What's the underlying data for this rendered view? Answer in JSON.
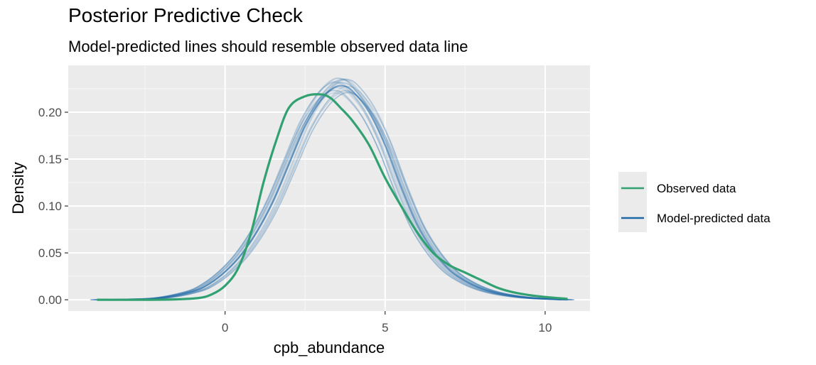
{
  "chart_data": {
    "type": "line",
    "title": "Posterior Predictive Check",
    "subtitle": "Model-predicted lines should resemble observed data line",
    "xlabel": "cpb_abundance",
    "ylabel": "Density",
    "xlim": [
      -4.9,
      11.4
    ],
    "ylim": [
      -0.012,
      0.25
    ],
    "x_ticks": [
      0,
      5,
      10
    ],
    "x_tick_labels": [
      "0",
      "5",
      "10"
    ],
    "y_ticks": [
      0.0,
      0.05,
      0.1,
      0.15,
      0.2
    ],
    "y_tick_labels": [
      "0.00",
      "0.05",
      "0.10",
      "0.15",
      "0.20"
    ],
    "grid": true,
    "legend_position": "right",
    "series": [
      {
        "name": "Observed data",
        "color": "#31A172",
        "x": [
          -4.0,
          -2.5,
          -1.5,
          -0.8,
          -0.4,
          0.0,
          0.4,
          0.8,
          1.2,
          1.6,
          2.0,
          2.5,
          3.0,
          3.3,
          3.6,
          4.0,
          4.5,
          5.0,
          5.5,
          6.0,
          6.5,
          7.0,
          7.5,
          8.0,
          8.5,
          9.0,
          9.5,
          10.0,
          10.7
        ],
        "y": [
          0.0,
          0.0,
          0.0005,
          0.002,
          0.006,
          0.015,
          0.033,
          0.07,
          0.125,
          0.17,
          0.205,
          0.217,
          0.219,
          0.215,
          0.205,
          0.19,
          0.165,
          0.13,
          0.1,
          0.072,
          0.05,
          0.037,
          0.029,
          0.021,
          0.013,
          0.008,
          0.005,
          0.003,
          0.001
        ]
      },
      {
        "name": "Model-predicted data",
        "color": "#1F68A8",
        "draws": 20,
        "x": [
          -4.0,
          -3.0,
          -2.0,
          -1.0,
          -0.5,
          0.0,
          0.5,
          1.0,
          1.5,
          2.0,
          2.5,
          3.0,
          3.4,
          3.7,
          4.0,
          4.5,
          5.0,
          5.5,
          6.0,
          6.5,
          7.0,
          7.5,
          8.0,
          8.5,
          9.0,
          9.5,
          10.0,
          10.7
        ],
        "y": [
          0.0,
          0.0005,
          0.002,
          0.009,
          0.017,
          0.03,
          0.048,
          0.073,
          0.105,
          0.145,
          0.185,
          0.213,
          0.226,
          0.228,
          0.222,
          0.2,
          0.165,
          0.12,
          0.08,
          0.052,
          0.032,
          0.02,
          0.012,
          0.007,
          0.004,
          0.002,
          0.001,
          0.0
        ]
      }
    ]
  }
}
